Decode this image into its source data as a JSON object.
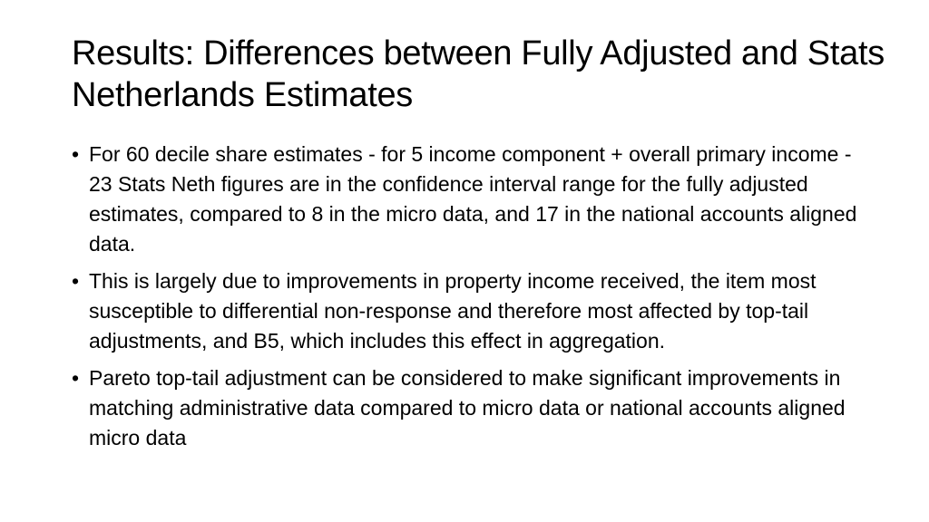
{
  "slide": {
    "title": "Results: Differences between Fully Adjusted and Stats Netherlands Estimates",
    "bullet_marker": "•",
    "bullets": [
      "For 60 decile share estimates - for 5 income component + overall primary income - 23 Stats Neth figures are in the confidence interval range for the fully adjusted estimates, compared to 8 in the micro data, and 17 in the national accounts aligned data.",
      "This is largely due to improvements in property income received, the item most susceptible to differential non-response and therefore most affected by top-tail adjustments, and B5, which includes this effect in aggregation.",
      "Pareto top-tail adjustment can be considered to make significant improvements in matching administrative data compared to micro data or national accounts aligned micro data"
    ]
  }
}
